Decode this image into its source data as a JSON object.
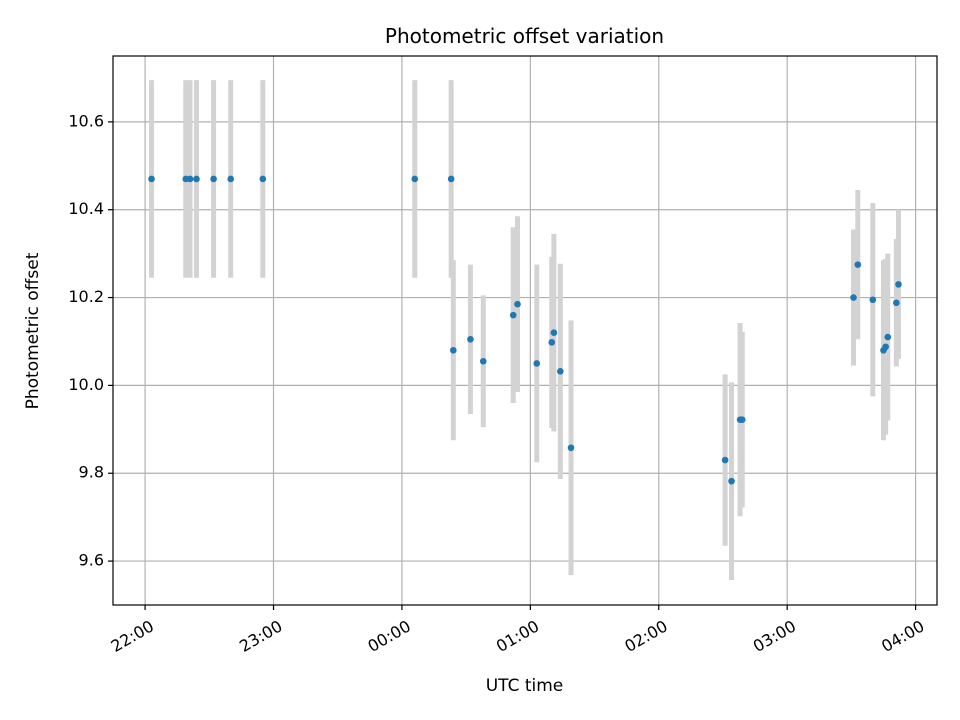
{
  "chart_data": {
    "type": "scatter",
    "title": "Photometric offset variation",
    "xlabel": "UTC time",
    "ylabel": "Photometric offset",
    "x_axis": {
      "type": "time",
      "min": "21:45",
      "max": "04:10",
      "ticks": [
        "22:00",
        "23:00",
        "00:00",
        "01:00",
        "02:00",
        "03:00",
        "04:00"
      ],
      "tick_label_rotation": "30 degrees"
    },
    "y_axis": {
      "min": 9.5,
      "max": 10.75,
      "ticks": [
        "9.6",
        "9.8",
        "10.0",
        "10.2",
        "10.4",
        "10.6"
      ]
    },
    "grid": true,
    "colors": {
      "marker": "#1f77b4",
      "error_bar": "#d3d3d3",
      "grid": "#b0b0b0"
    },
    "series": [
      {
        "points": [
          {
            "x": "22:03",
            "y": 10.47,
            "err": 0.225
          },
          {
            "x": "22:19",
            "y": 10.47,
            "err": 0.225
          },
          {
            "x": "22:21",
            "y": 10.47,
            "err": 0.225
          },
          {
            "x": "22:24",
            "y": 10.47,
            "err": 0.225
          },
          {
            "x": "22:32",
            "y": 10.47,
            "err": 0.225
          },
          {
            "x": "22:40",
            "y": 10.47,
            "err": 0.225
          },
          {
            "x": "22:55",
            "y": 10.47,
            "err": 0.225
          },
          {
            "x": "00:06",
            "y": 10.47,
            "err": 0.225
          },
          {
            "x": "00:23",
            "y": 10.47,
            "err": 0.225
          },
          {
            "x": "00:24",
            "y": 10.08,
            "err": 0.205
          },
          {
            "x": "00:32",
            "y": 10.105,
            "err": 0.17
          },
          {
            "x": "00:38",
            "y": 10.055,
            "err": 0.15
          },
          {
            "x": "00:52",
            "y": 10.16,
            "err": 0.2
          },
          {
            "x": "00:54",
            "y": 10.185,
            "err": 0.2
          },
          {
            "x": "01:03",
            "y": 10.05,
            "err": 0.225
          },
          {
            "x": "01:10",
            "y": 10.098,
            "err": 0.195
          },
          {
            "x": "01:11",
            "y": 10.12,
            "err": 0.225
          },
          {
            "x": "01:14",
            "y": 10.032,
            "err": 0.245
          },
          {
            "x": "01:19",
            "y": 9.858,
            "err": 0.29
          },
          {
            "x": "02:31",
            "y": 9.83,
            "err": 0.195
          },
          {
            "x": "02:34",
            "y": 9.782,
            "err": 0.225
          },
          {
            "x": "02:38",
            "y": 9.922,
            "err": 0.22
          },
          {
            "x": "02:39",
            "y": 9.922,
            "err": 0.2
          },
          {
            "x": "03:31",
            "y": 10.2,
            "err": 0.155
          },
          {
            "x": "03:33",
            "y": 10.275,
            "err": 0.17
          },
          {
            "x": "03:40",
            "y": 10.195,
            "err": 0.22
          },
          {
            "x": "03:45",
            "y": 10.08,
            "err": 0.205
          },
          {
            "x": "03:46",
            "y": 10.088,
            "err": 0.2
          },
          {
            "x": "03:47",
            "y": 10.11,
            "err": 0.19
          },
          {
            "x": "03:51",
            "y": 10.188,
            "err": 0.145
          },
          {
            "x": "03:52",
            "y": 10.23,
            "err": 0.17
          }
        ]
      }
    ]
  }
}
